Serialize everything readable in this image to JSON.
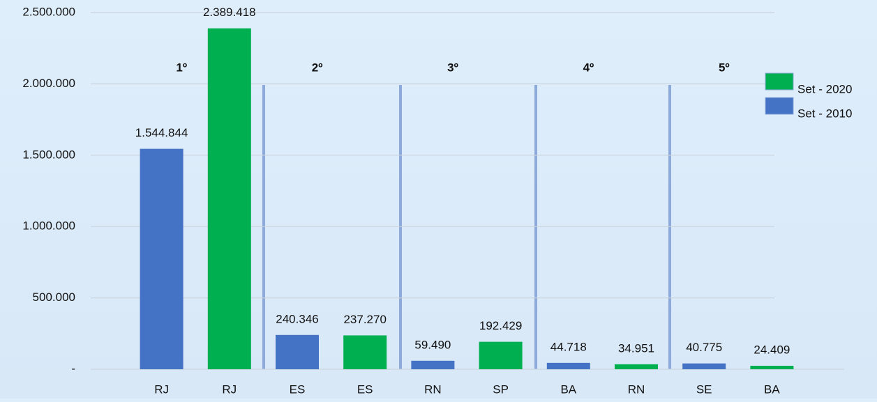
{
  "chart_data": {
    "type": "bar",
    "categories": [
      "RJ",
      "RJ",
      "ES",
      "ES",
      "RN",
      "SP",
      "BA",
      "RN",
      "SE",
      "BA"
    ],
    "series": [
      {
        "name": "Set - 2020",
        "color": "#00b050",
        "values": [
          null,
          2389418,
          null,
          237270,
          null,
          192429,
          null,
          34951,
          null,
          24409
        ],
        "value_labels": [
          null,
          "2.389.418",
          null,
          "237.270",
          null,
          "192.429",
          null,
          "34.951",
          null,
          "24.409"
        ]
      },
      {
        "name": "Set - 2010",
        "color": "#4472c4",
        "values": [
          1544844,
          null,
          240346,
          null,
          59490,
          null,
          44718,
          null,
          40775,
          null
        ],
        "value_labels": [
          "1.544.844",
          null,
          "240.346",
          null,
          "59.490",
          null,
          "44.718",
          null,
          "40.775",
          null
        ]
      }
    ],
    "annotations": [
      "1º",
      "2º",
      "3º",
      "4º",
      "5º"
    ],
    "ylim": [
      0,
      2500000
    ],
    "yticks": [
      {
        "value": 0,
        "label": "-"
      },
      {
        "value": 500000,
        "label": "500.000"
      },
      {
        "value": 1000000,
        "label": "1.000.000"
      },
      {
        "value": 1500000,
        "label": "1.500.000"
      },
      {
        "value": 2000000,
        "label": "2.000.000"
      },
      {
        "value": 2500000,
        "label": "2.500.000"
      }
    ],
    "grid": true,
    "legend": "right"
  }
}
